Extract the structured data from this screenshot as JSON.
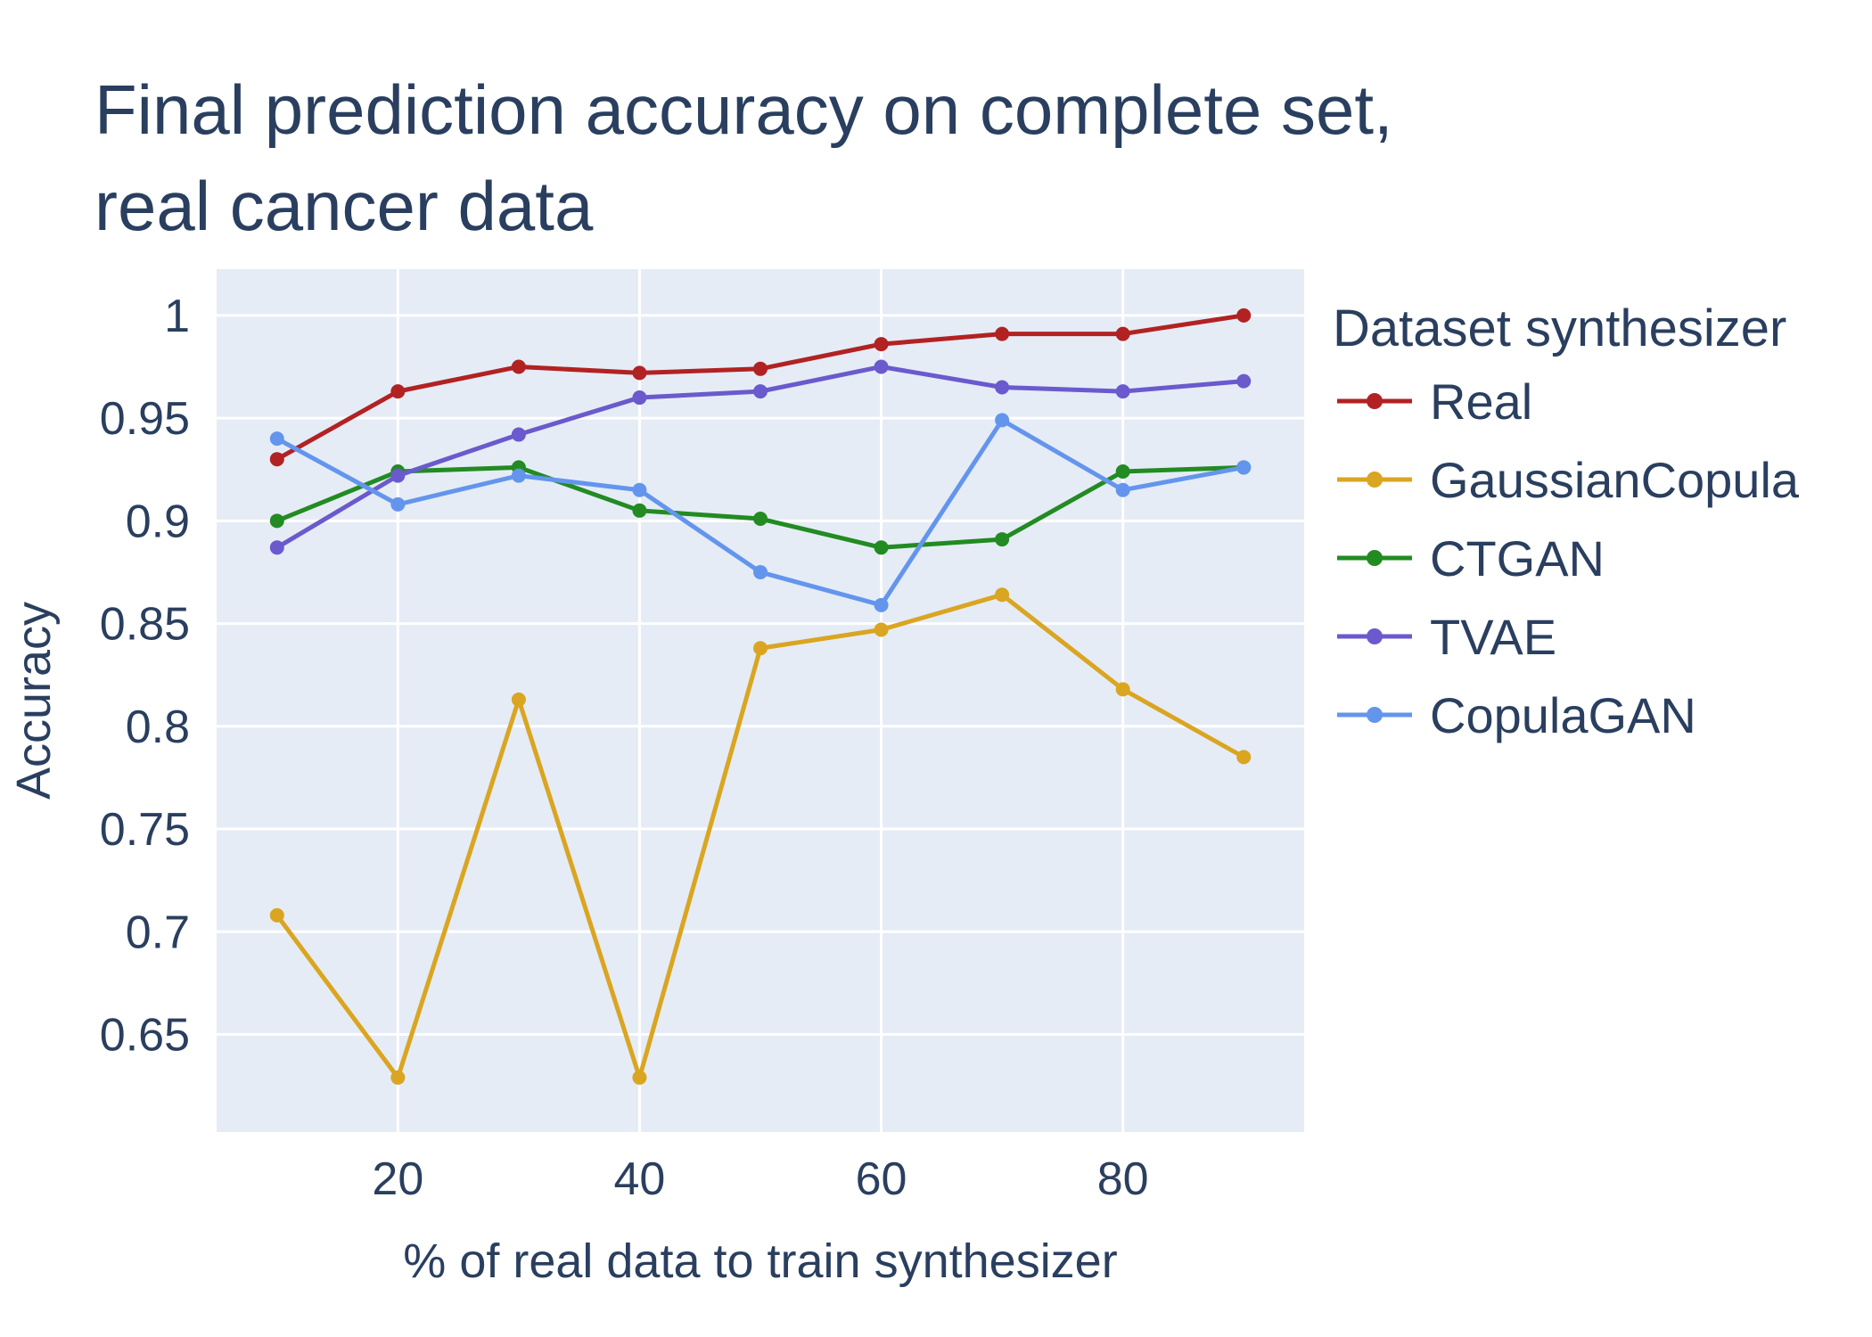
{
  "chart_data": {
    "type": "line",
    "title_lines": [
      "Final prediction accuracy on complete set,",
      "real cancer data"
    ],
    "xlabel": "% of real data to train synthesizer",
    "ylabel": "Accuracy",
    "xlim": [
      5,
      95
    ],
    "ylim": [
      0.6025,
      1.0225
    ],
    "x_ticks": [
      20,
      40,
      60,
      80
    ],
    "y_ticks": [
      0.65,
      0.7,
      0.75,
      0.8,
      0.85,
      0.9,
      0.95,
      1
    ],
    "x_tick_labels": [
      "20",
      "40",
      "60",
      "80"
    ],
    "y_tick_labels": [
      "0.65",
      "0.7",
      "0.75",
      "0.8",
      "0.85",
      "0.9",
      "0.95",
      "1"
    ],
    "grid": true,
    "plot_bgcolor": "#e5ecf6",
    "legend_title": "Dataset synthesizer",
    "legend_position": "right",
    "x": [
      10,
      20,
      30,
      40,
      50,
      60,
      70,
      80,
      90
    ],
    "series": [
      {
        "name": "Real",
        "color": "#b22222",
        "values": [
          0.93,
          0.963,
          0.975,
          0.972,
          0.974,
          0.986,
          0.991,
          0.991,
          1.0
        ]
      },
      {
        "name": "GaussianCopula",
        "color": "#daa520",
        "values": [
          0.708,
          0.629,
          0.813,
          0.629,
          0.838,
          0.847,
          0.864,
          0.818,
          0.785
        ]
      },
      {
        "name": "CTGAN",
        "color": "#228b22",
        "values": [
          0.9,
          0.924,
          0.926,
          0.905,
          0.901,
          0.887,
          0.891,
          0.924,
          0.926
        ]
      },
      {
        "name": "TVAE",
        "color": "#6a5acd",
        "values": [
          0.887,
          0.922,
          0.942,
          0.96,
          0.963,
          0.975,
          0.965,
          0.963,
          0.968
        ]
      },
      {
        "name": "CopulaGAN",
        "color": "#6495ed",
        "values": [
          0.94,
          0.908,
          0.922,
          0.915,
          0.875,
          0.859,
          0.949,
          0.915,
          0.926
        ]
      }
    ]
  }
}
